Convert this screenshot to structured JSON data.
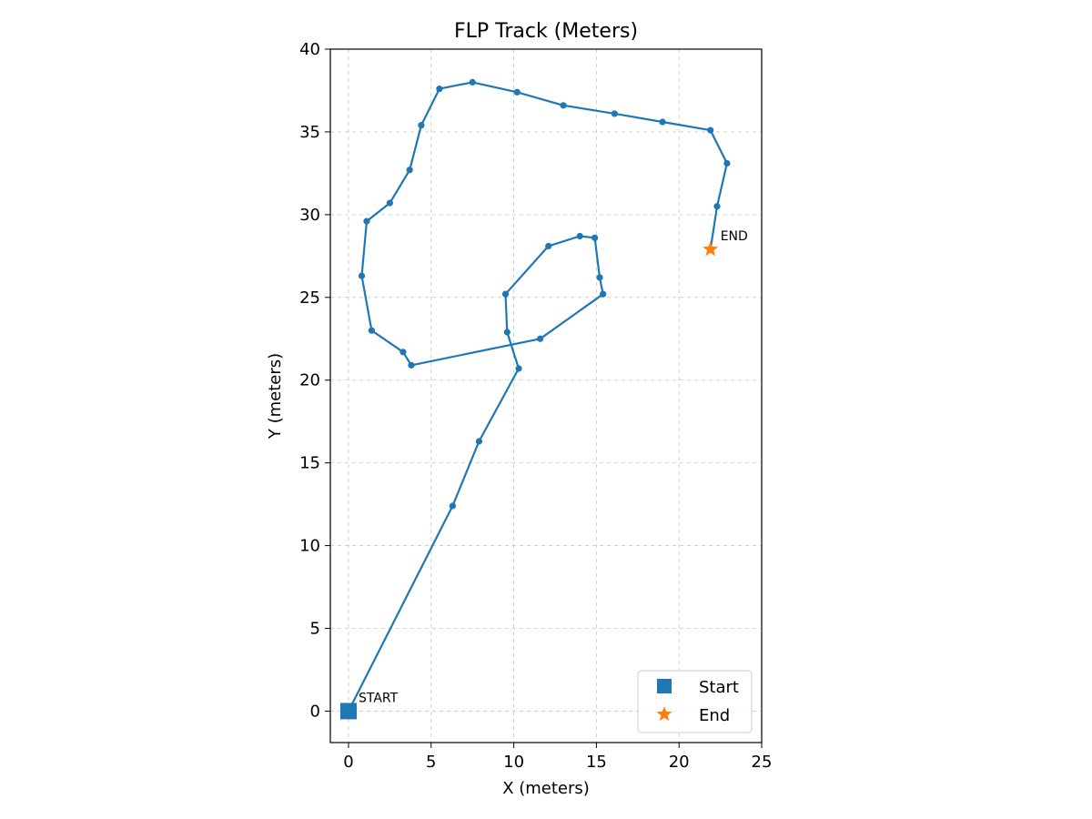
{
  "chart_data": {
    "type": "line",
    "title": "FLP Track (Meters)",
    "xlabel": "X (meters)",
    "ylabel": "Y (meters)",
    "xlim": [
      -1.1,
      25
    ],
    "ylim": [
      -1.9,
      40
    ],
    "xticks": [
      0,
      5,
      10,
      15,
      20,
      25
    ],
    "yticks": [
      0,
      5,
      10,
      15,
      20,
      25,
      30,
      35,
      40
    ],
    "grid": true,
    "legend_position": "bottom-right",
    "track": {
      "color": "#1f77b4",
      "points": [
        [
          0.0,
          0.0
        ],
        [
          6.3,
          12.4
        ],
        [
          7.9,
          16.3
        ],
        [
          10.3,
          20.7
        ],
        [
          9.6,
          22.9
        ],
        [
          9.5,
          25.2
        ],
        [
          12.1,
          28.1
        ],
        [
          14.0,
          28.7
        ],
        [
          14.9,
          28.6
        ],
        [
          15.2,
          26.2
        ],
        [
          15.4,
          25.2
        ],
        [
          11.6,
          22.5
        ],
        [
          3.8,
          20.9
        ],
        [
          3.3,
          21.7
        ],
        [
          1.4,
          23.0
        ],
        [
          0.8,
          26.3
        ],
        [
          1.1,
          29.6
        ],
        [
          2.5,
          30.7
        ],
        [
          3.7,
          32.7
        ],
        [
          4.4,
          35.4
        ],
        [
          5.5,
          37.6
        ],
        [
          7.5,
          38.0
        ],
        [
          10.2,
          37.4
        ],
        [
          13.0,
          36.6
        ],
        [
          16.1,
          36.1
        ],
        [
          19.0,
          35.6
        ],
        [
          21.9,
          35.1
        ],
        [
          22.9,
          33.1
        ],
        [
          22.3,
          30.5
        ],
        [
          21.9,
          27.9
        ]
      ]
    },
    "start": {
      "x": 0.0,
      "y": 0.0,
      "label": "START",
      "color": "#1f77b4"
    },
    "end": {
      "x": 21.9,
      "y": 27.9,
      "label": "END",
      "color": "#ff7f0e"
    },
    "legend": [
      {
        "name": "Start",
        "marker": "square",
        "color": "#1f77b4"
      },
      {
        "name": "End",
        "marker": "star",
        "color": "#ff7f0e"
      }
    ]
  }
}
